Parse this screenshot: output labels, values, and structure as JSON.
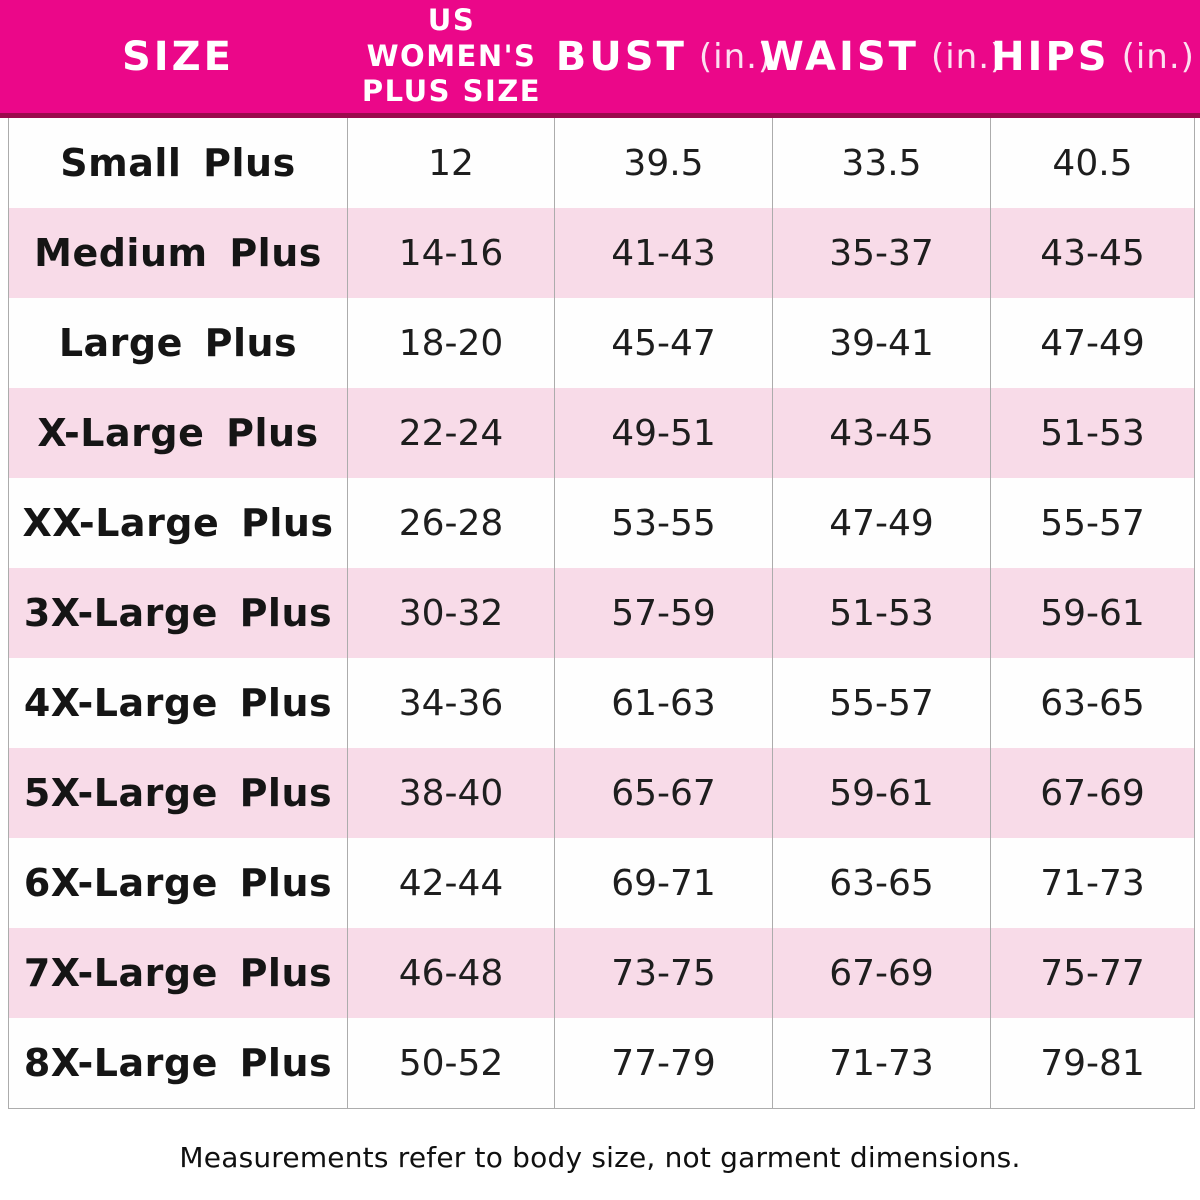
{
  "colors": {
    "header_bg": "#EB0789",
    "header_underline": "#9B0A4D",
    "row_pink": "#F8DBE8",
    "row_white": "#FEFEFE",
    "divider_gray": "#ACACAC",
    "header_text": "#FFFFFF",
    "body_text": "#1E1E1E"
  },
  "header": {
    "col_size": "SIZE",
    "col_plus_line1": "US WOMEN'S",
    "col_plus_line2": "PLUS SIZE",
    "col_bust": "BUST",
    "col_bust_unit": "(in.)",
    "col_waist": "WAIST",
    "col_waist_unit": "(in.)",
    "col_hips": "HIPS",
    "col_hips_unit": "(in.)"
  },
  "rows": [
    {
      "size": "Small Plus",
      "us_plus": "12",
      "bust": "39.5",
      "waist": "33.5",
      "hips": "40.5"
    },
    {
      "size": "Medium Plus",
      "us_plus": "14-16",
      "bust": "41-43",
      "waist": "35-37",
      "hips": "43-45"
    },
    {
      "size": "Large Plus",
      "us_plus": "18-20",
      "bust": "45-47",
      "waist": "39-41",
      "hips": "47-49"
    },
    {
      "size": "X-Large Plus",
      "us_plus": "22-24",
      "bust": "49-51",
      "waist": "43-45",
      "hips": "51-53"
    },
    {
      "size": "XX-Large Plus",
      "us_plus": "26-28",
      "bust": "53-55",
      "waist": "47-49",
      "hips": "55-57"
    },
    {
      "size": "3X-Large Plus",
      "us_plus": "30-32",
      "bust": "57-59",
      "waist": "51-53",
      "hips": "59-61"
    },
    {
      "size": "4X-Large Plus",
      "us_plus": "34-36",
      "bust": "61-63",
      "waist": "55-57",
      "hips": "63-65"
    },
    {
      "size": "5X-Large Plus",
      "us_plus": "38-40",
      "bust": "65-67",
      "waist": "59-61",
      "hips": "67-69"
    },
    {
      "size": "6X-Large Plus",
      "us_plus": "42-44",
      "bust": "69-71",
      "waist": "63-65",
      "hips": "71-73"
    },
    {
      "size": "7X-Large Plus",
      "us_plus": "46-48",
      "bust": "73-75",
      "waist": "67-69",
      "hips": "75-77"
    },
    {
      "size": "8X-Large Plus",
      "us_plus": "50-52",
      "bust": "77-79",
      "waist": "71-73",
      "hips": "79-81"
    }
  ],
  "footer": {
    "note": "Measurements refer to body size, not garment dimensions."
  },
  "chart_data": {
    "type": "table",
    "columns": [
      "SIZE",
      "US WOMEN'S PLUS SIZE",
      "BUST (in.)",
      "WAIST (in.)",
      "HIPS (in.)"
    ],
    "rows": [
      [
        "Small Plus",
        "12",
        "39.5",
        "33.5",
        "40.5"
      ],
      [
        "Medium Plus",
        "14-16",
        "41-43",
        "35-37",
        "43-45"
      ],
      [
        "Large Plus",
        "18-20",
        "45-47",
        "39-41",
        "47-49"
      ],
      [
        "X-Large Plus",
        "22-24",
        "49-51",
        "43-45",
        "51-53"
      ],
      [
        "XX-Large Plus",
        "26-28",
        "53-55",
        "47-49",
        "55-57"
      ],
      [
        "3X-Large Plus",
        "30-32",
        "57-59",
        "51-53",
        "59-61"
      ],
      [
        "4X-Large Plus",
        "34-36",
        "61-63",
        "55-57",
        "63-65"
      ],
      [
        "5X-Large Plus",
        "38-40",
        "65-67",
        "59-61",
        "67-69"
      ],
      [
        "6X-Large Plus",
        "42-44",
        "69-71",
        "63-65",
        "71-73"
      ],
      [
        "7X-Large Plus",
        "46-48",
        "73-75",
        "67-69",
        "75-77"
      ],
      [
        "8X-Large Plus",
        "50-52",
        "77-79",
        "71-73",
        "79-81"
      ]
    ],
    "footnote": "Measurements refer to body size, not garment dimensions."
  }
}
